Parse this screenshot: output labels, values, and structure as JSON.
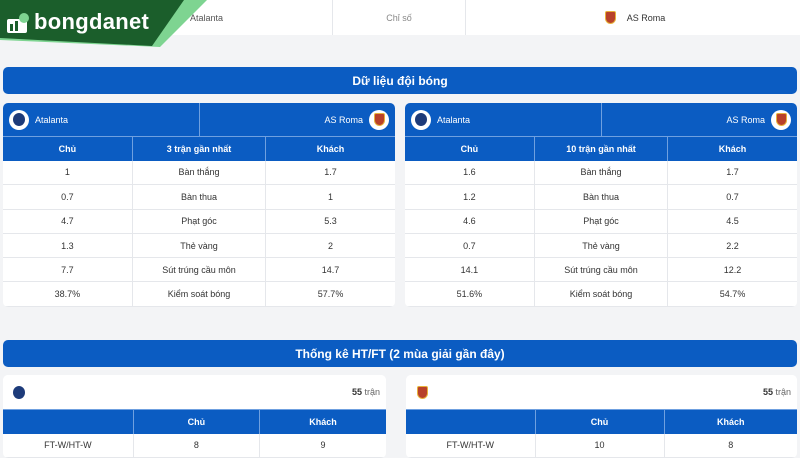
{
  "brand": {
    "name": "bongdanet",
    "color": "#1a5c2a",
    "accent": "#0b5cc2"
  },
  "topbar": {
    "home": "Atalanta",
    "middle": "Chỉ số",
    "away": "AS Roma"
  },
  "team_data": {
    "title": "Dữ liệu đội bóng",
    "home": "Atalanta",
    "away": "AS Roma",
    "tables": [
      {
        "headers": [
          "Chủ",
          "3 trận gần nhất",
          "Khách"
        ],
        "rows": [
          [
            "1",
            "Bàn thắng",
            "1.7"
          ],
          [
            "0.7",
            "Bàn thua",
            "1"
          ],
          [
            "4.7",
            "Phạt góc",
            "5.3"
          ],
          [
            "1.3",
            "Thẻ vàng",
            "2"
          ],
          [
            "7.7",
            "Sút trúng cầu môn",
            "14.7"
          ],
          [
            "38.7%",
            "Kiểm soát bóng",
            "57.7%"
          ]
        ]
      },
      {
        "headers": [
          "Chủ",
          "10 trận gần nhất",
          "Khách"
        ],
        "rows": [
          [
            "1.6",
            "Bàn thắng",
            "1.7"
          ],
          [
            "1.2",
            "Bàn thua",
            "0.7"
          ],
          [
            "4.6",
            "Phạt góc",
            "4.5"
          ],
          [
            "0.7",
            "Thẻ vàng",
            "2.2"
          ],
          [
            "14.1",
            "Sút trúng cầu môn",
            "12.2"
          ],
          [
            "51.6%",
            "Kiểm soát bóng",
            "54.7%"
          ]
        ]
      }
    ]
  },
  "htft": {
    "title": "Thống kê HT/FT (2 mùa giải gần đây)",
    "panels": [
      {
        "team_icon": "atalanta-badge",
        "count": "55",
        "count_unit": "trận",
        "headers": [
          "",
          "Chủ",
          "Khách"
        ],
        "rows": [
          [
            "FT-W/HT-W",
            "8",
            "9"
          ]
        ]
      },
      {
        "team_icon": "roma-badge",
        "count": "55",
        "count_unit": "trận",
        "headers": [
          "",
          "Chủ",
          "Khách"
        ],
        "rows": [
          [
            "FT-W/HT-W",
            "10",
            "8"
          ]
        ]
      }
    ]
  }
}
